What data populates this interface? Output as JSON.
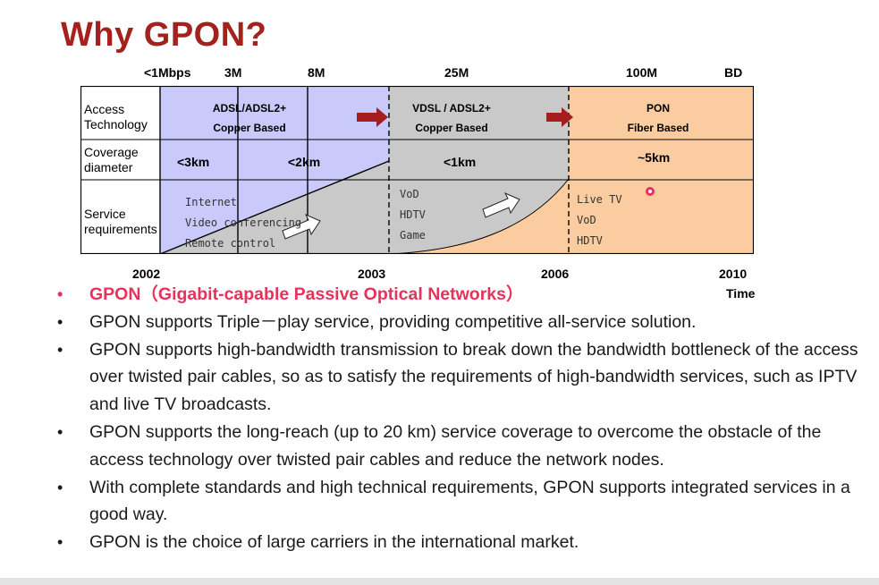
{
  "slide": {
    "title": "Why GPON?",
    "bandwidth_labels": [
      "<1Mbps",
      "3M",
      "8M",
      "25M",
      "100M",
      "BD"
    ],
    "year_labels": [
      "2002",
      "2003",
      "2006",
      "2010"
    ],
    "time_label": "Time"
  },
  "diagram": {
    "row_labels": {
      "access": [
        "Access",
        "Technology"
      ],
      "coverage": [
        "Coverage",
        "diameter"
      ],
      "service": [
        "Service",
        "requirements"
      ]
    },
    "access": [
      {
        "line1": "ADSL/ADSL2+",
        "line2": "Copper Based"
      },
      {
        "line1": "VDSL / ADSL2+",
        "line2": "Copper Based"
      },
      {
        "line1": "PON",
        "line2": "Fiber Based"
      }
    ],
    "coverage": [
      "<3km",
      "<2km",
      "<1km",
      "~5km"
    ],
    "services": {
      "stage1": [
        "Internet",
        "Video conferencing",
        "Remote control"
      ],
      "stage2": [
        "VoD",
        "HDTV",
        "Game"
      ],
      "stage3": [
        "Live TV",
        "VoD",
        "HDTV"
      ]
    },
    "colors": {
      "copper_adsl": "#c9c9fb",
      "copper_vdsl": "#c9c9c9",
      "fiber": "#fbcc9f",
      "arrow": "#a51d1d"
    }
  },
  "bullets": [
    {
      "text": "GPON（Gigabit-capable Passive Optical Networks）",
      "highlight": true
    },
    {
      "text": "GPON supports Triple－play service, providing competitive all-service solution.",
      "highlight": false
    },
    {
      "text": "GPON supports high-bandwidth transmission to break down the bandwidth bottleneck of the access over twisted pair cables, so as to satisfy the requirements of high-bandwidth services, such as  IPTV and live TV broadcasts.",
      "highlight": false
    },
    {
      "text": "GPON supports the long-reach (up to 20 km) service coverage to overcome the obstacle of the access technology over twisted pair cables and reduce the network nodes.",
      "highlight": false
    },
    {
      "text": "With complete standards and high technical requirements, GPON supports integrated services in a good way.",
      "highlight": false
    },
    {
      "text": "GPON is the choice of large carriers in the international market.",
      "highlight": false
    }
  ]
}
